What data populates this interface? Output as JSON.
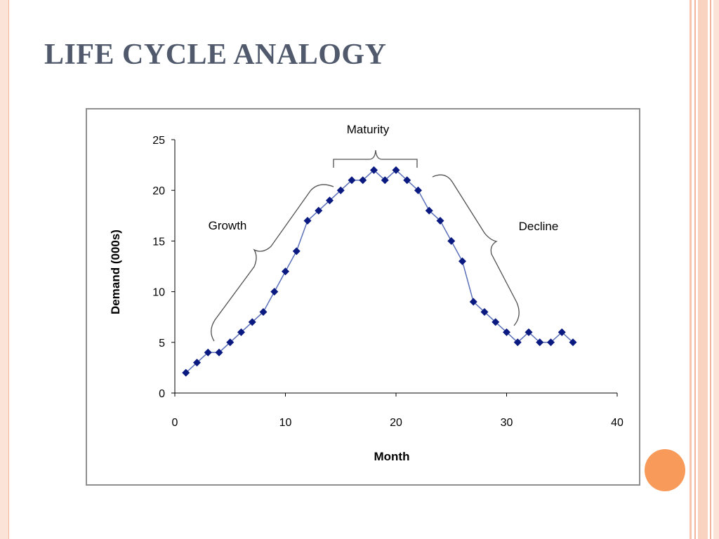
{
  "slide": {
    "title": "LIFE CYCLE ANALOGY"
  },
  "colors": {
    "title": "#505a6c",
    "series_line": "#5a6fb8",
    "series_marker": "#0a1a80",
    "bracket": "#505050",
    "accent_orange": "#f79a5a",
    "border_peach": "#f2b59c"
  },
  "chart_data": {
    "type": "line",
    "xlabel": "Month",
    "ylabel": "Demand (000s)",
    "xlim": [
      0,
      40
    ],
    "ylim": [
      0,
      25
    ],
    "xticks": [
      "0",
      "10",
      "20",
      "30",
      "40"
    ],
    "yticks": [
      "0",
      "5",
      "10",
      "15",
      "20",
      "25"
    ],
    "grid": false,
    "series": [
      {
        "x": [
          1,
          2,
          3,
          4,
          5,
          6,
          7,
          8,
          9,
          10,
          11,
          12,
          13,
          14,
          15,
          16,
          17,
          18,
          19,
          20,
          21,
          22,
          23,
          24,
          25,
          26,
          27,
          28,
          29,
          30,
          31,
          32,
          33,
          34,
          35,
          36
        ],
        "y": [
          2,
          3,
          4,
          4,
          5,
          6,
          7,
          8,
          10,
          12,
          14,
          17,
          18,
          19,
          20,
          21,
          21,
          22,
          21,
          22,
          21,
          20,
          18,
          17,
          15,
          13,
          9,
          8,
          7,
          6,
          5,
          6,
          5,
          5,
          6,
          5
        ]
      }
    ],
    "annotations": [
      {
        "text": "Growth"
      },
      {
        "text": "Maturity"
      },
      {
        "text": "Decline"
      }
    ]
  }
}
